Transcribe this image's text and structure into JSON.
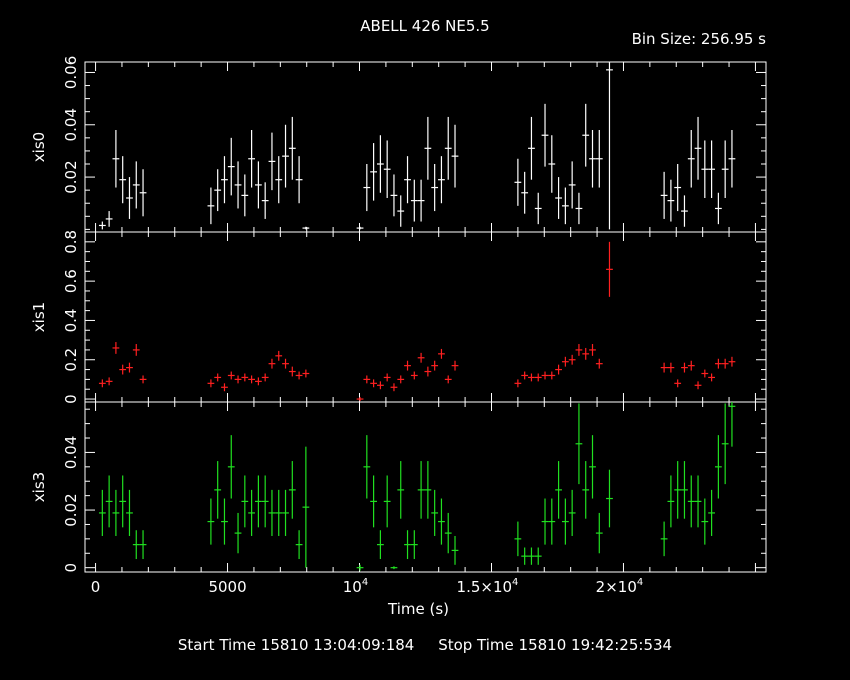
{
  "header": {
    "title": "ABELL 426 NE5.5",
    "bin_size": "Bin Size: 256.95 s"
  },
  "footer": {
    "start": "Start Time 15810 13:04:09:184",
    "stop": "Stop Time 15810 19:42:25:534"
  },
  "chart_data": {
    "type": "scatter",
    "xlabel": "Time (s)",
    "xlim": [
      -400,
      25400
    ],
    "x_ticks": [
      {
        "value": 0,
        "label": "0"
      },
      {
        "value": 5000,
        "label": "5000"
      },
      {
        "value": 10000,
        "label": "10",
        "exp": "4"
      },
      {
        "value": 15000,
        "label": "1.5×10",
        "exp": "4"
      },
      {
        "value": 20000,
        "label": "2×10",
        "exp": "4"
      }
    ],
    "x_minor_step": 1000,
    "bin_half_width": 128.5,
    "panels": [
      {
        "ylabel": "xis0",
        "color": "#ffffff",
        "ylim": [
          -0.001,
          0.064
        ],
        "yticks": [
          0.02,
          0.04,
          0.06
        ],
        "ytick_labels": [
          "0.02",
          "0.04",
          "0.06"
        ],
        "minor_step": 0.005,
        "points": [
          [
            257,
            0.0015,
            0.0015
          ],
          [
            514,
            0.004,
            0.003
          ],
          [
            771,
            0.027,
            0.011
          ],
          [
            1028,
            0.019,
            0.009
          ],
          [
            1285,
            0.012,
            0.008
          ],
          [
            1542,
            0.017,
            0.009
          ],
          [
            1799,
            0.014,
            0.009
          ],
          [
            4370,
            0.009,
            0.007
          ],
          [
            4627,
            0.015,
            0.008
          ],
          [
            4884,
            0.019,
            0.009
          ],
          [
            5141,
            0.024,
            0.011
          ],
          [
            5398,
            0.017,
            0.009
          ],
          [
            5655,
            0.013,
            0.008
          ],
          [
            5912,
            0.027,
            0.011
          ],
          [
            6169,
            0.017,
            0.009
          ],
          [
            6426,
            0.011,
            0.007
          ],
          [
            6683,
            0.026,
            0.011
          ],
          [
            6940,
            0.019,
            0.009
          ],
          [
            7197,
            0.028,
            0.012
          ],
          [
            7454,
            0.031,
            0.012
          ],
          [
            7711,
            0.019,
            0.009
          ],
          [
            7968,
            0.0005,
            0.0005
          ],
          [
            10020,
            0.0005,
            0.0005
          ],
          [
            10277,
            0.016,
            0.009
          ],
          [
            10534,
            0.022,
            0.011
          ],
          [
            10791,
            0.025,
            0.011
          ],
          [
            11048,
            0.023,
            0.011
          ],
          [
            11305,
            0.013,
            0.008
          ],
          [
            11562,
            0.007,
            0.006
          ],
          [
            11819,
            0.019,
            0.009
          ],
          [
            12076,
            0.011,
            0.008
          ],
          [
            12333,
            0.011,
            0.008
          ],
          [
            12590,
            0.031,
            0.012
          ],
          [
            12847,
            0.016,
            0.009
          ],
          [
            13104,
            0.019,
            0.009
          ],
          [
            13361,
            0.031,
            0.012
          ],
          [
            13618,
            0.028,
            0.012
          ],
          [
            16000,
            0.018,
            0.009
          ],
          [
            16257,
            0.014,
            0.008
          ],
          [
            16514,
            0.031,
            0.012
          ],
          [
            16771,
            0.008,
            0.006
          ],
          [
            17028,
            0.036,
            0.012
          ],
          [
            17285,
            0.025,
            0.011
          ],
          [
            17542,
            0.012,
            0.008
          ],
          [
            17799,
            0.009,
            0.007
          ],
          [
            18056,
            0.017,
            0.009
          ],
          [
            18313,
            0.008,
            0.006
          ],
          [
            18570,
            0.036,
            0.012
          ],
          [
            18827,
            0.027,
            0.011
          ],
          [
            19084,
            0.027,
            0.011
          ],
          [
            19470,
            0.061,
            0.061
          ],
          [
            21540,
            0.013,
            0.009
          ],
          [
            21797,
            0.011,
            0.008
          ],
          [
            22054,
            0.016,
            0.009
          ],
          [
            22311,
            0.007,
            0.006
          ],
          [
            22568,
            0.027,
            0.011
          ],
          [
            22825,
            0.031,
            0.012
          ],
          [
            23082,
            0.023,
            0.011
          ],
          [
            23339,
            0.023,
            0.011
          ],
          [
            23596,
            0.008,
            0.006
          ],
          [
            23853,
            0.023,
            0.011
          ],
          [
            24110,
            0.027,
            0.011
          ]
        ]
      },
      {
        "ylabel": "xis1",
        "color": "#ff2020",
        "ylim": [
          -0.015,
          0.85
        ],
        "yticks": [
          0,
          0.2,
          0.4,
          0.6,
          0.8
        ],
        "ytick_labels": [
          "0",
          "0.2",
          "0.4",
          "0.6",
          "0.8"
        ],
        "minor_step": 0.05,
        "points": [
          [
            257,
            0.08,
            0.02
          ],
          [
            514,
            0.09,
            0.02
          ],
          [
            771,
            0.26,
            0.03
          ],
          [
            1028,
            0.15,
            0.025
          ],
          [
            1285,
            0.16,
            0.025
          ],
          [
            1542,
            0.25,
            0.03
          ],
          [
            1799,
            0.1,
            0.02
          ],
          [
            4370,
            0.08,
            0.02
          ],
          [
            4627,
            0.11,
            0.02
          ],
          [
            4884,
            0.06,
            0.02
          ],
          [
            5141,
            0.12,
            0.02
          ],
          [
            5398,
            0.1,
            0.02
          ],
          [
            5655,
            0.11,
            0.02
          ],
          [
            5912,
            0.1,
            0.02
          ],
          [
            6169,
            0.09,
            0.02
          ],
          [
            6426,
            0.11,
            0.02
          ],
          [
            6683,
            0.18,
            0.025
          ],
          [
            6940,
            0.22,
            0.025
          ],
          [
            7197,
            0.18,
            0.025
          ],
          [
            7454,
            0.14,
            0.025
          ],
          [
            7711,
            0.12,
            0.02
          ],
          [
            7968,
            0.13,
            0.02
          ],
          [
            10020,
            0.0,
            0.01
          ],
          [
            10277,
            0.1,
            0.02
          ],
          [
            10534,
            0.08,
            0.02
          ],
          [
            10791,
            0.07,
            0.02
          ],
          [
            11048,
            0.11,
            0.02
          ],
          [
            11305,
            0.06,
            0.02
          ],
          [
            11562,
            0.1,
            0.02
          ],
          [
            11819,
            0.17,
            0.025
          ],
          [
            12076,
            0.12,
            0.02
          ],
          [
            12333,
            0.21,
            0.025
          ],
          [
            12590,
            0.14,
            0.025
          ],
          [
            12847,
            0.17,
            0.025
          ],
          [
            13104,
            0.23,
            0.025
          ],
          [
            13361,
            0.1,
            0.02
          ],
          [
            13618,
            0.17,
            0.025
          ],
          [
            16000,
            0.08,
            0.02
          ],
          [
            16257,
            0.12,
            0.02
          ],
          [
            16514,
            0.11,
            0.02
          ],
          [
            16771,
            0.11,
            0.02
          ],
          [
            17028,
            0.12,
            0.02
          ],
          [
            17285,
            0.12,
            0.02
          ],
          [
            17542,
            0.15,
            0.025
          ],
          [
            17799,
            0.19,
            0.025
          ],
          [
            18056,
            0.2,
            0.025
          ],
          [
            18313,
            0.25,
            0.03
          ],
          [
            18570,
            0.23,
            0.03
          ],
          [
            18827,
            0.25,
            0.03
          ],
          [
            19084,
            0.18,
            0.025
          ],
          [
            19470,
            0.66,
            0.14
          ],
          [
            21540,
            0.16,
            0.025
          ],
          [
            21797,
            0.16,
            0.025
          ],
          [
            22054,
            0.08,
            0.02
          ],
          [
            22311,
            0.16,
            0.025
          ],
          [
            22568,
            0.17,
            0.025
          ],
          [
            22825,
            0.07,
            0.02
          ],
          [
            23082,
            0.13,
            0.02
          ],
          [
            23339,
            0.11,
            0.02
          ],
          [
            23596,
            0.18,
            0.025
          ],
          [
            23853,
            0.18,
            0.025
          ],
          [
            24110,
            0.19,
            0.025
          ]
        ]
      },
      {
        "ylabel": "xis3",
        "color": "#20e020",
        "ylim": [
          -0.0015,
          0.0575
        ],
        "yticks": [
          0,
          0.02,
          0.04
        ],
        "ytick_labels": [
          "0",
          "0.02",
          "0.04"
        ],
        "minor_step": 0.005,
        "points": [
          [
            257,
            0.019,
            0.008
          ],
          [
            514,
            0.023,
            0.009
          ],
          [
            771,
            0.019,
            0.008
          ],
          [
            1028,
            0.023,
            0.009
          ],
          [
            1285,
            0.019,
            0.008
          ],
          [
            1542,
            0.008,
            0.005
          ],
          [
            1799,
            0.008,
            0.005
          ],
          [
            4370,
            0.016,
            0.008
          ],
          [
            4627,
            0.027,
            0.01
          ],
          [
            4884,
            0.016,
            0.008
          ],
          [
            5141,
            0.035,
            0.011
          ],
          [
            5398,
            0.012,
            0.007
          ],
          [
            5655,
            0.023,
            0.009
          ],
          [
            5912,
            0.019,
            0.008
          ],
          [
            6169,
            0.023,
            0.009
          ],
          [
            6426,
            0.023,
            0.009
          ],
          [
            6683,
            0.019,
            0.008
          ],
          [
            6940,
            0.019,
            0.008
          ],
          [
            7197,
            0.019,
            0.008
          ],
          [
            7454,
            0.027,
            0.01
          ],
          [
            7711,
            0.008,
            0.005
          ],
          [
            7968,
            0.021,
            0.021
          ],
          [
            10020,
            0.0,
            0.001
          ],
          [
            10277,
            0.035,
            0.011
          ],
          [
            10534,
            0.023,
            0.009
          ],
          [
            10791,
            0.008,
            0.005
          ],
          [
            11048,
            0.023,
            0.009
          ],
          [
            11305,
            0.0,
            0.0005
          ],
          [
            11562,
            0.027,
            0.01
          ],
          [
            11819,
            0.008,
            0.005
          ],
          [
            12076,
            0.008,
            0.005
          ],
          [
            12333,
            0.027,
            0.01
          ],
          [
            12590,
            0.027,
            0.01
          ],
          [
            12847,
            0.019,
            0.008
          ],
          [
            13104,
            0.016,
            0.008
          ],
          [
            13361,
            0.012,
            0.007
          ],
          [
            13618,
            0.006,
            0.005
          ],
          [
            16000,
            0.01,
            0.006
          ],
          [
            16257,
            0.004,
            0.003
          ],
          [
            16514,
            0.004,
            0.003
          ],
          [
            16771,
            0.004,
            0.003
          ],
          [
            17028,
            0.016,
            0.008
          ],
          [
            17285,
            0.016,
            0.008
          ],
          [
            17542,
            0.027,
            0.01
          ],
          [
            17799,
            0.016,
            0.008
          ],
          [
            18056,
            0.019,
            0.008
          ],
          [
            18313,
            0.043,
            0.014
          ],
          [
            18570,
            0.027,
            0.01
          ],
          [
            18827,
            0.035,
            0.011
          ],
          [
            19084,
            0.012,
            0.007
          ],
          [
            19470,
            0.024,
            0.01
          ],
          [
            21540,
            0.01,
            0.006
          ],
          [
            21797,
            0.023,
            0.009
          ],
          [
            22054,
            0.027,
            0.01
          ],
          [
            22311,
            0.027,
            0.01
          ],
          [
            22568,
            0.023,
            0.009
          ],
          [
            22825,
            0.023,
            0.009
          ],
          [
            23082,
            0.016,
            0.008
          ],
          [
            23339,
            0.019,
            0.008
          ],
          [
            23596,
            0.035,
            0.011
          ],
          [
            23853,
            0.043,
            0.014
          ],
          [
            24110,
            0.056,
            0.014
          ]
        ]
      }
    ]
  }
}
